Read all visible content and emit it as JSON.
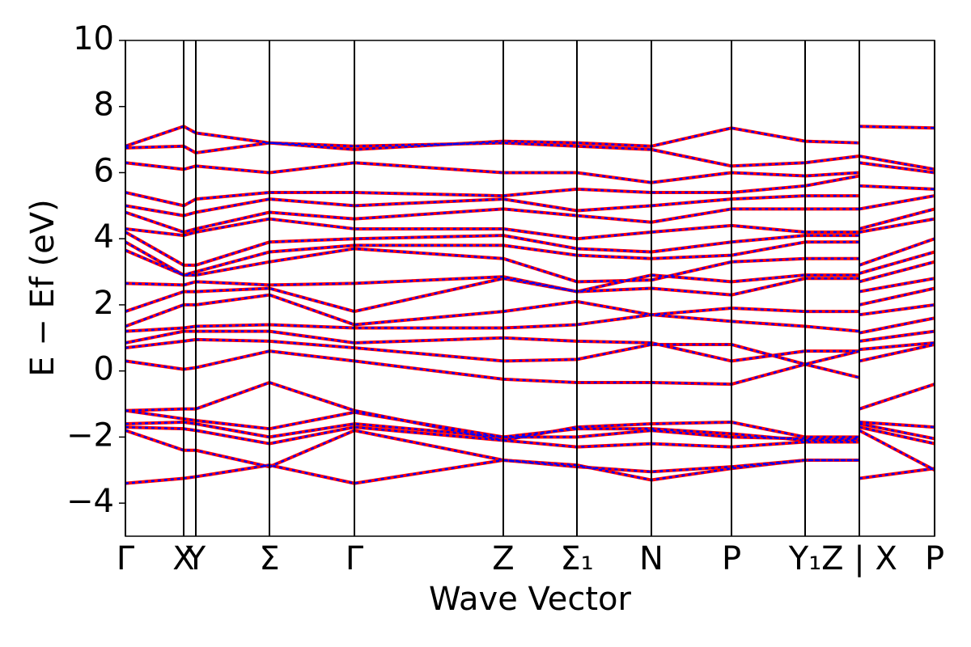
{
  "chart_data": {
    "type": "band_structure",
    "xlabel": "Wave Vector",
    "ylabel": "E − Ef (eV)",
    "xlim": [
      0,
      10
    ],
    "ylim": [
      -5,
      10
    ],
    "xticks": [
      {
        "value": 0,
        "label": "Γ"
      },
      {
        "value": 0.72,
        "label": "X"
      },
      {
        "value": 0.87,
        "label": "Y"
      },
      {
        "value": 1.78,
        "label": "Σ"
      },
      {
        "value": 2.83,
        "label": "Γ"
      },
      {
        "value": 4.67,
        "label": "Z"
      },
      {
        "value": 5.58,
        "label": "Σ₁"
      },
      {
        "value": 6.5,
        "label": "N"
      },
      {
        "value": 7.49,
        "label": "P"
      },
      {
        "value": 8.4,
        "label": "Y₁"
      },
      {
        "value": 9.07,
        "label": "Z | X"
      },
      {
        "value": 10,
        "label": "P"
      }
    ],
    "yticks": [
      {
        "value": -4,
        "label": "−4"
      },
      {
        "value": -2,
        "label": "−2"
      },
      0,
      2,
      4,
      6,
      8,
      10
    ],
    "line_colors": [
      "#ff0000",
      "#0000ff"
    ],
    "x": [
      0,
      0.72,
      0.87,
      1.78,
      2.83,
      4.67,
      5.58,
      6.5,
      7.49,
      8.4,
      9.07,
      9.07,
      10
    ],
    "bands": [
      [
        -3.4,
        -3.25,
        -3.2,
        -2.85,
        -3.4,
        -2.7,
        -2.85,
        -3.3,
        -2.95,
        -2.7,
        -2.7,
        -3.25,
        -2.95
      ],
      [
        -1.8,
        -2.4,
        -2.4,
        -2.9,
        -1.8,
        -2.7,
        -2.9,
        -3.05,
        -2.9,
        -2.7,
        -2.7,
        -1.8,
        -3.0
      ],
      [
        -1.7,
        -1.75,
        -1.8,
        -2.2,
        -1.7,
        -2.1,
        -2.3,
        -2.2,
        -2.3,
        -2.15,
        -2.15,
        -1.7,
        -2.2
      ],
      [
        -1.6,
        -1.55,
        -1.6,
        -2.0,
        -1.6,
        -2.0,
        -2.0,
        -1.8,
        -2.0,
        -2.05,
        -2.05,
        -1.6,
        -2.05
      ],
      [
        -1.2,
        -1.45,
        -1.5,
        -1.75,
        -1.25,
        -2.0,
        -1.75,
        -1.75,
        -1.9,
        -2.1,
        -2.1,
        -1.55,
        -1.7
      ],
      [
        -1.2,
        -1.15,
        -1.15,
        -0.35,
        -1.2,
        -2.1,
        -1.7,
        -1.6,
        -1.55,
        -2.0,
        -2.0,
        -1.15,
        -0.4
      ],
      [
        0.3,
        0.05,
        0.1,
        0.6,
        0.3,
        -0.25,
        -0.35,
        -0.35,
        -0.4,
        0.2,
        -0.2,
        0.3,
        0.8
      ],
      [
        0.7,
        0.9,
        0.95,
        0.9,
        0.7,
        0.3,
        0.35,
        0.8,
        0.8,
        0.2,
        0.6,
        0.65,
        0.85
      ],
      [
        0.85,
        1.2,
        1.2,
        1.2,
        0.85,
        1.0,
        0.9,
        0.85,
        0.3,
        0.6,
        0.6,
        0.9,
        1.2
      ],
      [
        1.2,
        1.3,
        1.35,
        1.4,
        1.3,
        1.3,
        1.4,
        1.7,
        1.5,
        1.35,
        1.2,
        1.15,
        1.6
      ],
      [
        1.35,
        2.0,
        2.0,
        2.3,
        1.4,
        1.8,
        2.1,
        1.7,
        1.9,
        1.8,
        1.8,
        1.7,
        2.0
      ],
      [
        1.8,
        2.4,
        2.4,
        2.5,
        1.8,
        2.8,
        2.4,
        2.5,
        2.3,
        2.8,
        2.8,
        2.0,
        2.5
      ],
      [
        2.65,
        2.6,
        2.7,
        2.6,
        2.65,
        2.85,
        2.4,
        2.9,
        2.7,
        2.9,
        2.9,
        2.4,
        2.8
      ],
      [
        3.65,
        2.9,
        2.9,
        3.3,
        3.7,
        3.4,
        2.7,
        2.75,
        3.3,
        3.4,
        3.4,
        2.7,
        3.3
      ],
      [
        3.9,
        2.9,
        3.0,
        3.6,
        3.8,
        3.8,
        3.5,
        3.4,
        3.5,
        3.9,
        3.9,
        2.95,
        3.6
      ],
      [
        4.2,
        3.2,
        3.2,
        3.9,
        4.0,
        4.1,
        3.7,
        3.6,
        3.9,
        4.1,
        4.1,
        3.2,
        4.0
      ],
      [
        4.3,
        4.1,
        4.2,
        4.6,
        4.3,
        4.3,
        4.0,
        4.2,
        4.4,
        4.2,
        4.2,
        4.2,
        4.6
      ],
      [
        4.8,
        4.2,
        4.3,
        4.8,
        4.6,
        4.9,
        4.7,
        4.5,
        4.9,
        4.9,
        4.9,
        4.3,
        4.9
      ],
      [
        5.0,
        4.7,
        4.8,
        5.2,
        5.0,
        5.2,
        4.85,
        5.0,
        5.2,
        5.3,
        5.3,
        4.9,
        5.3
      ],
      [
        5.4,
        5.0,
        5.2,
        5.4,
        5.4,
        5.3,
        5.5,
        5.4,
        5.4,
        5.6,
        5.9,
        5.6,
        5.5
      ],
      [
        6.3,
        6.1,
        6.2,
        6.0,
        6.3,
        6.0,
        6.0,
        5.7,
        6.0,
        5.9,
        6.0,
        6.3,
        6.0
      ],
      [
        6.75,
        6.8,
        6.6,
        6.9,
        6.8,
        6.9,
        6.8,
        6.7,
        6.2,
        6.3,
        6.5,
        6.5,
        6.1
      ],
      [
        6.8,
        7.4,
        7.2,
        6.9,
        6.7,
        6.95,
        6.9,
        6.8,
        7.35,
        6.95,
        6.9,
        7.4,
        7.35
      ]
    ]
  }
}
